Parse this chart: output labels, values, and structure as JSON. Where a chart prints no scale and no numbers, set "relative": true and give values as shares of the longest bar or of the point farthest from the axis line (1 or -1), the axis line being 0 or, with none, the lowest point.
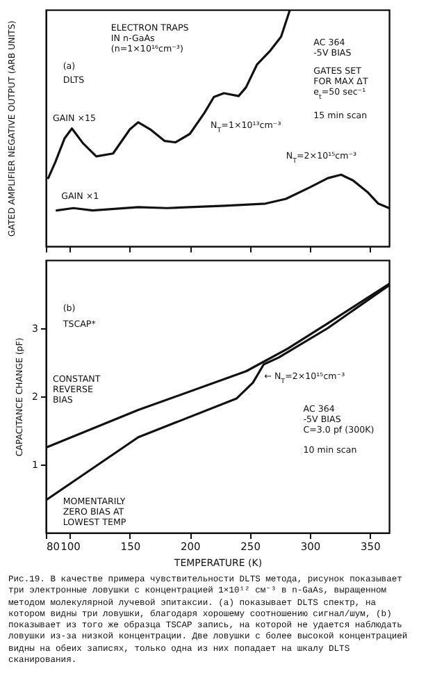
{
  "chart_data": [
    {
      "type": "line",
      "relative": true,
      "ylabel": "GATED AMPLIFIER NEGATIVE OUTPUT (ARB UNITS)",
      "xlim": [
        80,
        366
      ],
      "xticks": [
        80,
        100,
        150,
        200,
        250,
        300,
        350
      ],
      "tick_labels": false,
      "series": [
        {
          "color": "#111111",
          "x": [
            82,
            88,
            95.5,
            101.7,
            111,
            122,
            136,
            150,
            157,
            167,
            179,
            188,
            200,
            212,
            220,
            228.4,
            240.6,
            246.7,
            256,
            267,
            276,
            283.4
          ],
          "values": [
            0.288,
            0.357,
            0.455,
            0.498,
            0.435,
            0.38,
            0.392,
            0.494,
            0.524,
            0.494,
            0.445,
            0.439,
            0.475,
            0.563,
            0.631,
            0.647,
            0.635,
            0.671,
            0.769,
            0.827,
            0.886,
            1
          ]
        },
        {
          "color": "#111111",
          "x": [
            89,
            103,
            119,
            157,
            181,
            229,
            263,
            280,
            300,
            315,
            326,
            336,
            348,
            357,
            366
          ],
          "values": [
            0.151,
            0.161,
            0.151,
            0.165,
            0.161,
            0.171,
            0.18,
            0.2,
            0.249,
            0.288,
            0.302,
            0.278,
            0.229,
            0.18,
            0.161
          ]
        }
      ],
      "annotations": [
        "(a)",
        "DLTS",
        "ELECTRON TRAPS\nIN n-GaAs\n(n=1×10¹⁶cm⁻³)",
        "AC 364\n-5V BIAS",
        "GATES SET\nFOR MAX ΔT\ne$_{t}$=50 sec⁻¹",
        "15 min scan",
        "GAIN ×15",
        "GAIN ×1",
        "N$_{T}$=1×10¹³cm⁻³",
        "N$_{T}$=2×10¹⁵cm⁻³"
      ]
    },
    {
      "type": "line",
      "ylabel": "CAPACITANCE CHANGE (pF)",
      "xlabel": "TEMPERATURE (K)",
      "xlim": [
        80,
        366
      ],
      "xticks": [
        80,
        100,
        150,
        200,
        250,
        300,
        350
      ],
      "ylim": [
        0,
        4
      ],
      "yticks": [
        1,
        2,
        3
      ],
      "series": [
        {
          "color": "#111111",
          "x": [
            80.3,
            157,
            247,
            281.5,
            314.8,
            366
          ],
          "values": [
            1.25,
            1.8,
            2.37,
            2.7,
            3.07,
            3.65
          ]
        },
        {
          "color": "#111111",
          "x": [
            80.3,
            157,
            239,
            252.5,
            261.5,
            274,
            314.8,
            366
          ],
          "values": [
            0.48,
            1.4,
            1.97,
            2.2,
            2.47,
            2.57,
            3,
            3.63
          ]
        }
      ],
      "annotations": [
        "(b)",
        "TSCAP*",
        "CONSTANT\nREVERSE\nBIAS",
        "MOMENTARILY\nZERO BIAS AT\nLOWEST TEMP",
        {
          "text": "← N$_{T}$=2×10¹⁵cm⁻³",
          "x": 262,
          "y": 2.3
        },
        "AC 364\n-5V BIAS\nC=3.0 pf (300K)",
        "10 min scan",
        "Рис.19.    В качестве примера чувствительности DLTS метода, рисунок показывает три электронные ловушки с концентрацией 1×10¹² см⁻³ в n-GaAs, выращенном методом молекулярной лучевой эпитаксии. (a) показывает DLTS спектр, на котором видны три ловушки, благодаря хорошему соотношению сигнал/шум, (b) показывает из того же образца TSCAP запись, на которой не удается наблюдать ловушки из-за низкой концентрации. Две ловушки с более высокой концентрацией видны на обеих записях, только одна из них попадает на шкалу DLTS сканирования."
      ]
    }
  ]
}
